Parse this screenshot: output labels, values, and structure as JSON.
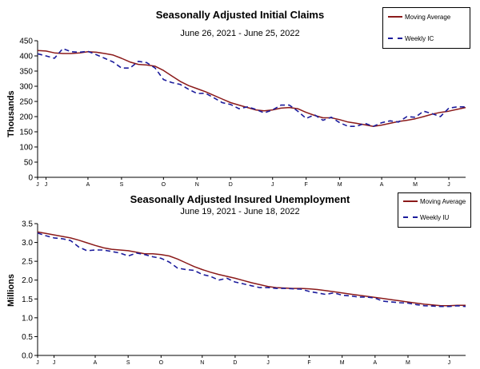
{
  "chart_data": [
    {
      "type": "line",
      "title": "Seasonally Adjusted Initial  Claims",
      "subtitle": "June 26, 2021 - June 25, 2022",
      "ylabel": "Thousands",
      "xlabel": "",
      "ylim": [
        0,
        450
      ],
      "yticks": [
        0,
        50,
        100,
        150,
        200,
        250,
        300,
        350,
        400,
        450
      ],
      "xticks": [
        {
          "label": "J",
          "week": 0
        },
        {
          "label": "J",
          "week": 1
        },
        {
          "label": "A",
          "week": 6
        },
        {
          "label": "S",
          "week": 10
        },
        {
          "label": "O",
          "week": 15
        },
        {
          "label": "N",
          "week": 19
        },
        {
          "label": "D",
          "week": 23
        },
        {
          "label": "J",
          "week": 28
        },
        {
          "label": "F",
          "week": 32
        },
        {
          "label": "M",
          "week": 36
        },
        {
          "label": "A",
          "week": 41
        },
        {
          "label": "M",
          "week": 45
        },
        {
          "label": "J",
          "week": 49
        }
      ],
      "grid": false,
      "legend_position": "top-right",
      "series": [
        {
          "name": "Moving Average",
          "color": "#8b1a1a",
          "dash": "solid",
          "values": [
            418,
            416,
            410,
            408,
            408,
            410,
            414,
            412,
            408,
            403,
            392,
            380,
            372,
            370,
            366,
            352,
            334,
            316,
            302,
            292,
            282,
            270,
            258,
            246,
            238,
            230,
            222,
            219,
            222,
            228,
            230,
            226,
            214,
            204,
            196,
            196,
            190,
            182,
            178,
            173,
            168,
            172,
            178,
            184,
            188,
            193,
            200,
            208,
            214,
            218,
            224,
            230
          ]
        },
        {
          "name": "Weekly IC",
          "color": "#1c1c9c",
          "dash": "dashed",
          "values": [
            407,
            400,
            392,
            424,
            414,
            412,
            415,
            404,
            392,
            380,
            360,
            360,
            382,
            378,
            360,
            322,
            312,
            306,
            290,
            276,
            277,
            262,
            246,
            240,
            226,
            232,
            224,
            212,
            222,
            238,
            238,
            218,
            194,
            206,
            188,
            198,
            180,
            168,
            168,
            178,
            168,
            180,
            186,
            182,
            200,
            198,
            218,
            210,
            200,
            228,
            232,
            232
          ]
        }
      ]
    },
    {
      "type": "line",
      "title": "Seasonally Adjusted Insured Unemployment",
      "subtitle": "June 19, 2021 - June 18, 2022",
      "ylabel": "Millions",
      "xlabel": "",
      "ylim": [
        0,
        3.5
      ],
      "yticks": [
        0.0,
        0.5,
        1.0,
        1.5,
        2.0,
        2.5,
        3.0,
        3.5
      ],
      "xticks": [
        {
          "label": "J",
          "week": 0
        },
        {
          "label": "J",
          "week": 2
        },
        {
          "label": "A",
          "week": 7
        },
        {
          "label": "S",
          "week": 11
        },
        {
          "label": "O",
          "week": 15
        },
        {
          "label": "N",
          "week": 20
        },
        {
          "label": "D",
          "week": 24
        },
        {
          "label": "J",
          "week": 28
        },
        {
          "label": "F",
          "week": 33
        },
        {
          "label": "M",
          "week": 37
        },
        {
          "label": "A",
          "week": 41
        },
        {
          "label": "M",
          "week": 45
        },
        {
          "label": "J",
          "week": 50
        }
      ],
      "grid": false,
      "legend_position": "top-right",
      "series": [
        {
          "name": "Moving Average",
          "color": "#8b1a1a",
          "dash": "solid",
          "values": [
            3.28,
            3.24,
            3.2,
            3.16,
            3.12,
            3.06,
            2.99,
            2.92,
            2.86,
            2.82,
            2.8,
            2.78,
            2.74,
            2.7,
            2.7,
            2.68,
            2.64,
            2.56,
            2.46,
            2.36,
            2.28,
            2.21,
            2.15,
            2.1,
            2.05,
            1.99,
            1.93,
            1.88,
            1.83,
            1.8,
            1.79,
            1.78,
            1.78,
            1.77,
            1.75,
            1.72,
            1.69,
            1.66,
            1.63,
            1.6,
            1.57,
            1.54,
            1.51,
            1.48,
            1.45,
            1.42,
            1.39,
            1.36,
            1.34,
            1.32,
            1.32,
            1.33,
            1.33
          ]
        },
        {
          "name": "Weekly IU",
          "color": "#1c1c9c",
          "dash": "dashed",
          "values": [
            3.25,
            3.18,
            3.12,
            3.1,
            3.05,
            2.88,
            2.78,
            2.8,
            2.8,
            2.76,
            2.72,
            2.64,
            2.72,
            2.68,
            2.62,
            2.58,
            2.48,
            2.32,
            2.28,
            2.26,
            2.15,
            2.1,
            2.0,
            2.05,
            1.95,
            1.9,
            1.85,
            1.8,
            1.8,
            1.78,
            1.78,
            1.77,
            1.76,
            1.7,
            1.66,
            1.62,
            1.66,
            1.6,
            1.58,
            1.55,
            1.55,
            1.52,
            1.44,
            1.42,
            1.4,
            1.39,
            1.35,
            1.32,
            1.31,
            1.3,
            1.3,
            1.32,
            1.3
          ]
        }
      ]
    }
  ]
}
